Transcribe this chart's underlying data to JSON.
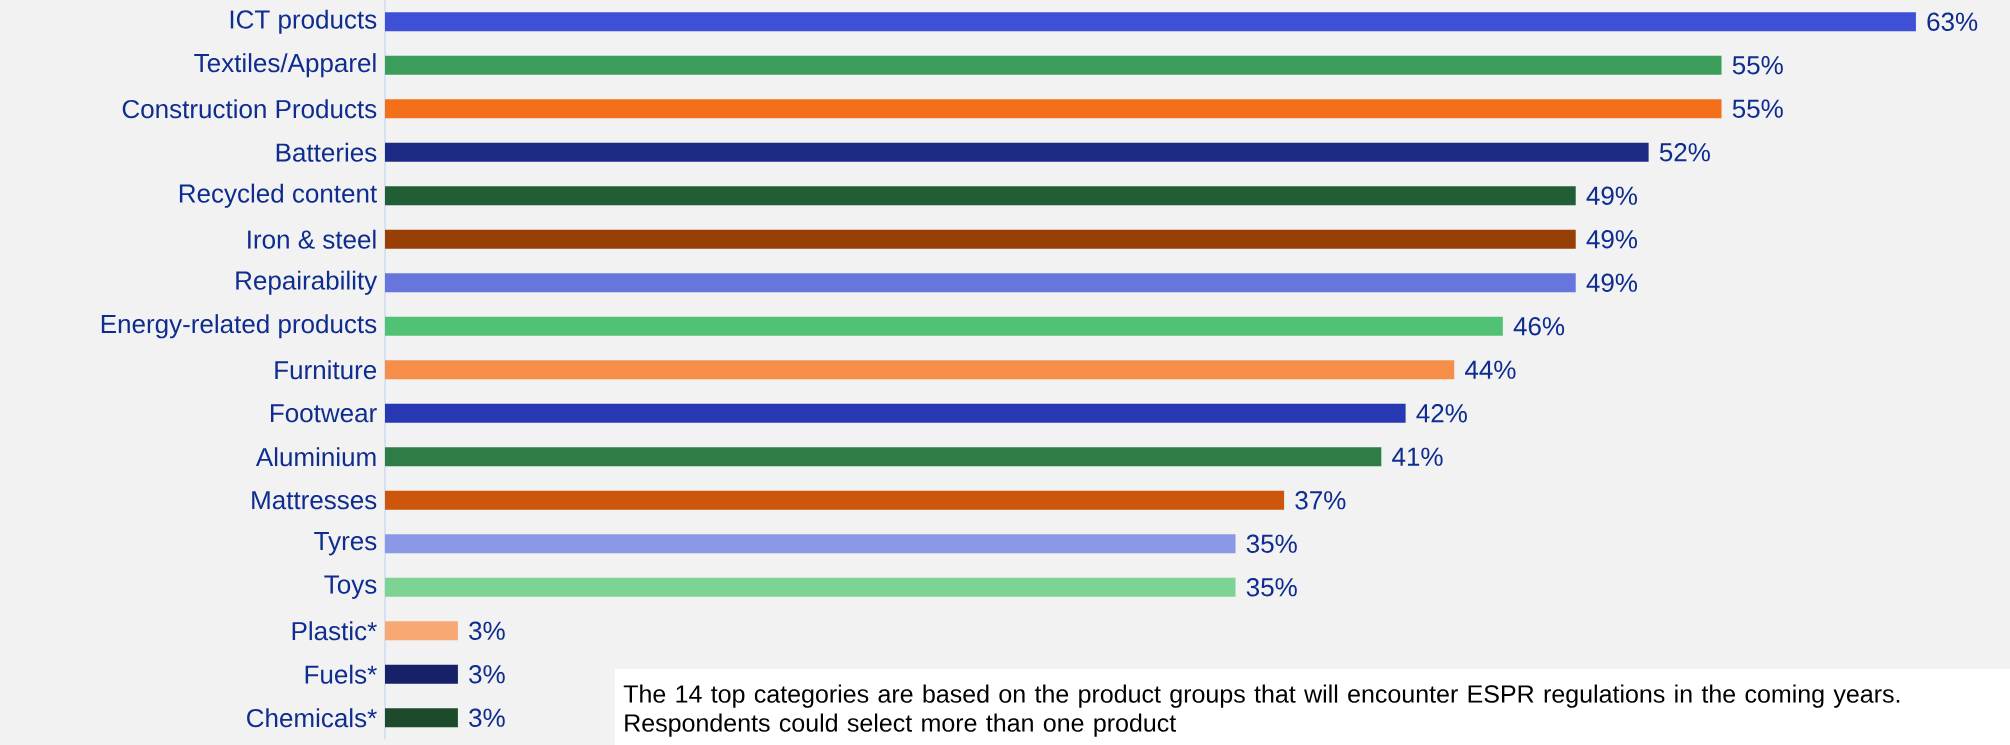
{
  "chart_data": {
    "type": "bar",
    "orientation": "horizontal",
    "categories": [
      "ICT products",
      "Textiles/Apparel",
      "Construction Products",
      "Batteries",
      "Recycled content",
      "Iron & steel",
      "Repairability",
      "Energy-related products",
      "Furniture",
      "Footwear",
      "Aluminium",
      "Mattresses",
      "Tyres",
      "Toys",
      "Plastic*",
      "Fuels*",
      "Chemicals*"
    ],
    "values": [
      63,
      55,
      55,
      52,
      49,
      49,
      49,
      46,
      44,
      42,
      41,
      37,
      35,
      35,
      3,
      3,
      3
    ],
    "value_labels": [
      "63%",
      "55%",
      "55%",
      "52%",
      "49%",
      "49%",
      "49%",
      "46%",
      "44%",
      "42%",
      "41%",
      "37%",
      "35%",
      "35%",
      "3%",
      "3%",
      "3%"
    ],
    "colors": [
      "#3d50d6",
      "#3a9e5a",
      "#f36f1a",
      "#1e2b85",
      "#225e35",
      "#983f06",
      "#6676dc",
      "#51c273",
      "#f68e4a",
      "#2838b2",
      "#2e7d47",
      "#cc560c",
      "#8a98e6",
      "#7dd394",
      "#f8a873",
      "#162167",
      "#1c4a2a"
    ],
    "annotations": [
      "The 14 top categories are based on the product groups that will encounter ESPR regulations in the coming years. Respondents could select more than one product"
    ]
  }
}
